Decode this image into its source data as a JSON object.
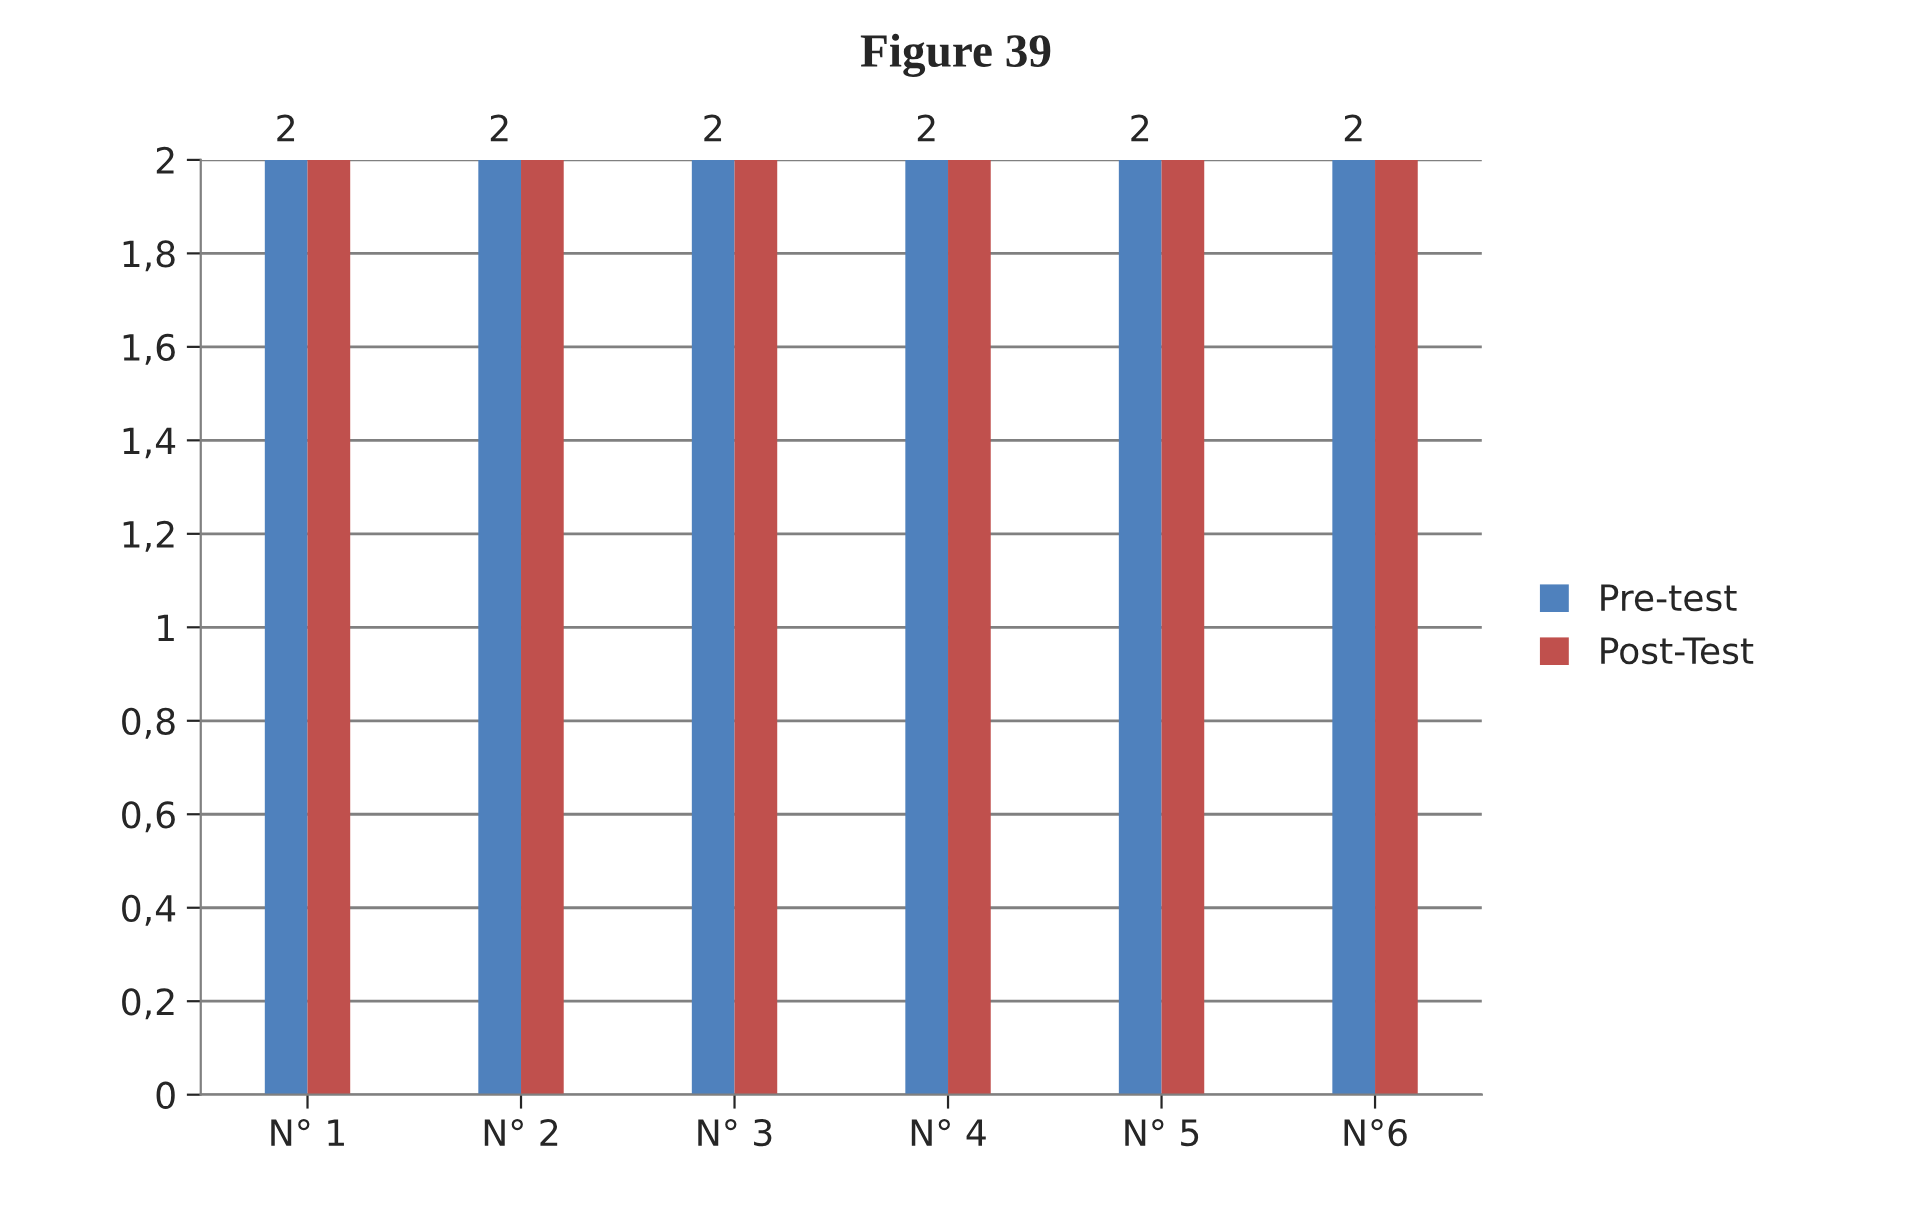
{
  "chart_data": {
    "type": "bar",
    "title": "Figure 39",
    "categories": [
      "N° 1",
      "N° 2",
      "N° 3",
      "N° 4",
      "N° 5",
      "N°6"
    ],
    "series": [
      {
        "name": "Pre-test",
        "color": "#4f81bd",
        "values": [
          2,
          2,
          2,
          2,
          2,
          2
        ],
        "value_labels": [
          "2",
          "2",
          "2",
          "2",
          "2",
          "2"
        ]
      },
      {
        "name": "Post-Test",
        "color": "#c0504d",
        "values": [
          2,
          2,
          2,
          2,
          2,
          2
        ]
      }
    ],
    "ylim": [
      0,
      2
    ],
    "yticks": [
      0,
      {
        "value": 0.2,
        "label": "0,2"
      },
      {
        "value": 0.4,
        "label": "0,4"
      },
      {
        "value": 0.6,
        "label": "0,6"
      },
      {
        "value": 0.8,
        "label": "0,8"
      },
      1,
      {
        "value": 1.2,
        "label": "1,2"
      },
      {
        "value": 1.4,
        "label": "1,4"
      },
      {
        "value": 1.6,
        "label": "1,6"
      },
      {
        "value": 1.8,
        "label": "1,8"
      },
      2
    ],
    "grid": "y",
    "legend": "right"
  }
}
